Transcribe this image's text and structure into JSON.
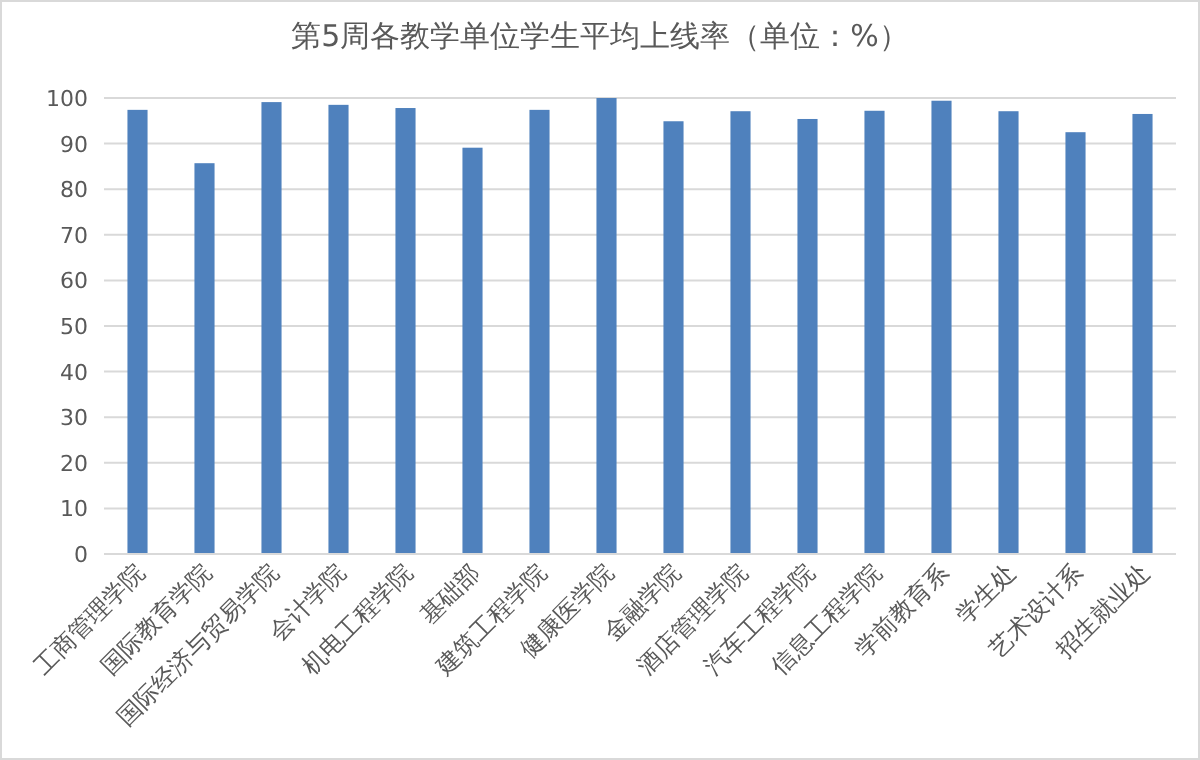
{
  "chart_data": {
    "type": "bar",
    "title": "第5周各教学单位学生平均上线率（单位：%）",
    "categories": [
      "工商管理学院",
      "国际教育学院",
      "国际经济与贸易学院",
      "会计学院",
      "机电工程学院",
      "基础部",
      "建筑工程学院",
      "健康医学院",
      "金融学院",
      "酒店管理学院",
      "汽车工程学院",
      "信息工程学院",
      "学前教育系",
      "学生处",
      "艺术设计系",
      "招生就业处"
    ],
    "values": [
      97.4,
      85.7,
      99.1,
      98.5,
      97.8,
      89.1,
      97.4,
      100,
      94.9,
      97.1,
      95.4,
      97.2,
      99.4,
      97.1,
      92.5,
      96.5
    ],
    "color": "#4f81bd",
    "ylim": [
      0,
      100
    ],
    "yticks": [
      0,
      10,
      20,
      30,
      40,
      50,
      60,
      70,
      80,
      90,
      100
    ],
    "grid": "y"
  }
}
